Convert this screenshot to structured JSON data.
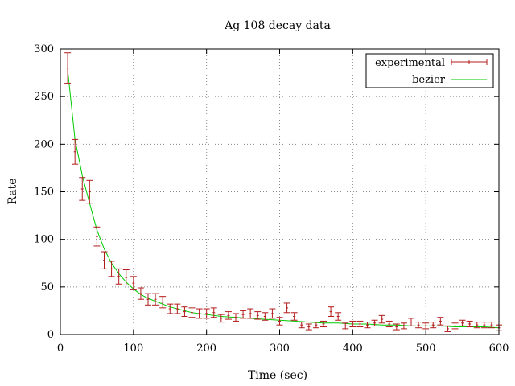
{
  "chart_data": {
    "type": "scatter",
    "title": "Ag 108 decay data",
    "xlabel": "Time (sec)",
    "ylabel": "Rate",
    "xlim": [
      0,
      600
    ],
    "ylim": [
      0,
      300
    ],
    "xticks": [
      0,
      100,
      200,
      300,
      400,
      500,
      600
    ],
    "yticks": [
      0,
      50,
      100,
      150,
      200,
      250,
      300
    ],
    "grid": true,
    "legend_position": "top-right",
    "series": [
      {
        "name": "experimental",
        "kind": "errorbars",
        "color": "#b31b1b",
        "x": [
          10,
          20,
          30,
          40,
          50,
          60,
          70,
          80,
          90,
          100,
          110,
          120,
          130,
          140,
          150,
          160,
          170,
          180,
          190,
          200,
          210,
          220,
          230,
          240,
          250,
          260,
          270,
          280,
          290,
          300,
          310,
          320,
          330,
          340,
          350,
          360,
          370,
          380,
          390,
          400,
          410,
          420,
          430,
          440,
          450,
          460,
          470,
          480,
          490,
          500,
          510,
          520,
          530,
          540,
          550,
          560,
          570,
          580,
          590,
          600
        ],
        "y": [
          280,
          192,
          153,
          150,
          103,
          78,
          69,
          61,
          60,
          54,
          43,
          37,
          37,
          34,
          27,
          27,
          24,
          23,
          22,
          22,
          23,
          17,
          20,
          18,
          21,
          22,
          20,
          19,
          22,
          14,
          28,
          19,
          10,
          8,
          10,
          11,
          24,
          19,
          9,
          11,
          11,
          10,
          12,
          16,
          11,
          8,
          9,
          13,
          10,
          9,
          10,
          14,
          6,
          9,
          12,
          11,
          10,
          10,
          10,
          7
        ],
        "err": [
          16,
          13,
          12,
          12,
          10,
          9,
          8,
          8,
          8,
          7,
          6,
          6,
          6,
          6,
          5,
          5,
          5,
          5,
          5,
          5,
          5,
          4,
          4,
          4,
          4,
          5,
          4,
          4,
          5,
          4,
          5,
          4,
          3,
          3,
          3,
          3,
          5,
          4,
          3,
          3,
          3,
          3,
          3,
          4,
          3,
          3,
          3,
          4,
          3,
          3,
          3,
          4,
          3,
          3,
          3,
          3,
          3,
          3,
          3,
          3
        ]
      },
      {
        "name": "bezier",
        "kind": "line",
        "color": "#00cc00",
        "x": [
          10,
          20,
          30,
          40,
          50,
          60,
          70,
          80,
          90,
          100,
          110,
          120,
          130,
          140,
          150,
          160,
          170,
          180,
          190,
          200,
          220,
          240,
          260,
          280,
          300,
          320,
          340,
          360,
          380,
          400,
          420,
          440,
          460,
          480,
          500,
          520,
          540,
          560,
          580,
          600
        ],
        "y": [
          278,
          205,
          167,
          138,
          110,
          90,
          75,
          64,
          55,
          48,
          42,
          38,
          35,
          32,
          29,
          27,
          25,
          23,
          22,
          21,
          19,
          18,
          17,
          16,
          15,
          14,
          13,
          12,
          12,
          11,
          11,
          10,
          10,
          9,
          9,
          9,
          8,
          8,
          8,
          7
        ]
      }
    ]
  }
}
